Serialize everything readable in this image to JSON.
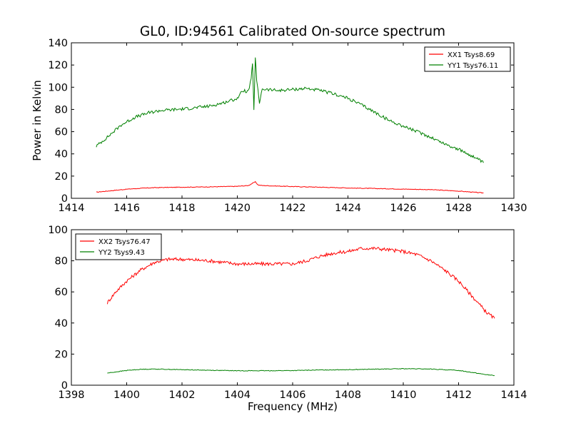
{
  "title": "GL0, ID:94561 Calibrated On-source spectrum",
  "colors": {
    "red": "#ff0000",
    "green": "#008000",
    "axes": "#000000"
  },
  "chart_data": [
    {
      "type": "line",
      "xlabel": "",
      "ylabel": "Power in Kelvin",
      "xlim": [
        1414,
        1430
      ],
      "ylim": [
        0,
        140
      ],
      "xticks": [
        "1414",
        "1416",
        "1418",
        "1420",
        "1422",
        "1424",
        "1426",
        "1428",
        "1430"
      ],
      "yticks": [
        "0",
        "20",
        "40",
        "60",
        "80",
        "100",
        "120",
        "140"
      ],
      "legend_position": "top-right",
      "series": [
        {
          "name": "XX1 Tsys8.69",
          "color": "#ff0000",
          "x": [
            1414.9,
            1415.5,
            1416.0,
            1416.5,
            1417.0,
            1418.0,
            1419.0,
            1420.0,
            1420.4,
            1420.55,
            1420.65,
            1420.75,
            1420.9,
            1421.5,
            1422.0,
            1423.0,
            1424.0,
            1425.0,
            1426.0,
            1427.0,
            1428.0,
            1428.9
          ],
          "y": [
            5.5,
            7.0,
            8.2,
            9.0,
            9.6,
            10.0,
            10.3,
            10.8,
            11.5,
            13.5,
            14.8,
            12.0,
            11.5,
            11.0,
            10.6,
            10.0,
            9.3,
            8.8,
            8.3,
            7.8,
            6.5,
            4.8
          ]
        },
        {
          "name": "YY1 Tsys76.11",
          "color": "#008000",
          "x": [
            1414.9,
            1415.3,
            1415.8,
            1416.3,
            1416.8,
            1417.2,
            1417.8,
            1418.3,
            1419.0,
            1419.5,
            1420.0,
            1420.2,
            1420.4,
            1420.5,
            1420.55,
            1420.6,
            1420.65,
            1420.7,
            1420.75,
            1420.8,
            1420.9,
            1421.0,
            1421.5,
            1422.0,
            1422.5,
            1423.0,
            1423.5,
            1424.0,
            1424.5,
            1425.0,
            1425.5,
            1426.0,
            1426.5,
            1427.0,
            1427.5,
            1428.0,
            1428.5,
            1428.9
          ],
          "y": [
            47,
            55,
            66,
            73,
            77,
            79,
            80,
            81,
            83,
            86,
            90,
            97,
            96,
            108,
            120,
            79,
            127,
            106,
            96,
            86,
            99,
            98,
            97,
            98,
            99,
            97,
            94,
            90,
            84,
            77,
            70,
            65,
            60,
            55,
            49,
            44,
            38,
            32
          ]
        }
      ]
    },
    {
      "type": "line",
      "xlabel": "Frequency (MHz)",
      "ylabel": "",
      "xlim": [
        1398,
        1414
      ],
      "ylim": [
        0,
        100
      ],
      "xticks": [
        "1398",
        "1400",
        "1402",
        "1404",
        "1406",
        "1408",
        "1410",
        "1412",
        "1414"
      ],
      "yticks": [
        "0",
        "20",
        "40",
        "60",
        "80",
        "100"
      ],
      "legend_position": "top-left",
      "series": [
        {
          "name": "XX2 Tsys76.47",
          "color": "#ff0000",
          "x": [
            1399.3,
            1399.6,
            1400.0,
            1400.5,
            1401.0,
            1401.5,
            1402.0,
            1403.0,
            1404.0,
            1405.0,
            1406.0,
            1406.5,
            1407.0,
            1407.5,
            1408.0,
            1408.5,
            1409.0,
            1409.5,
            1410.0,
            1410.5,
            1411.0,
            1411.5,
            1412.0,
            1412.5,
            1413.0,
            1413.3
          ],
          "y": [
            53,
            60,
            67,
            74,
            79,
            81,
            81,
            80,
            78,
            78,
            78,
            80,
            83,
            85,
            86,
            88,
            88,
            87,
            86,
            84,
            80,
            74,
            67,
            57,
            47,
            43
          ]
        },
        {
          "name": "YY2 Tsys9.43",
          "color": "#008000",
          "x": [
            1399.3,
            1400.0,
            1400.5,
            1401.0,
            1402.0,
            1403.0,
            1404.0,
            1405.0,
            1406.0,
            1407.0,
            1408.0,
            1409.0,
            1410.0,
            1411.0,
            1412.0,
            1412.5,
            1413.0,
            1413.3
          ],
          "y": [
            7.8,
            9.5,
            10.2,
            10.4,
            10.0,
            9.6,
            9.3,
            9.3,
            9.4,
            9.8,
            10.0,
            10.3,
            10.6,
            10.4,
            9.5,
            8.2,
            6.8,
            6.2
          ]
        }
      ]
    }
  ]
}
